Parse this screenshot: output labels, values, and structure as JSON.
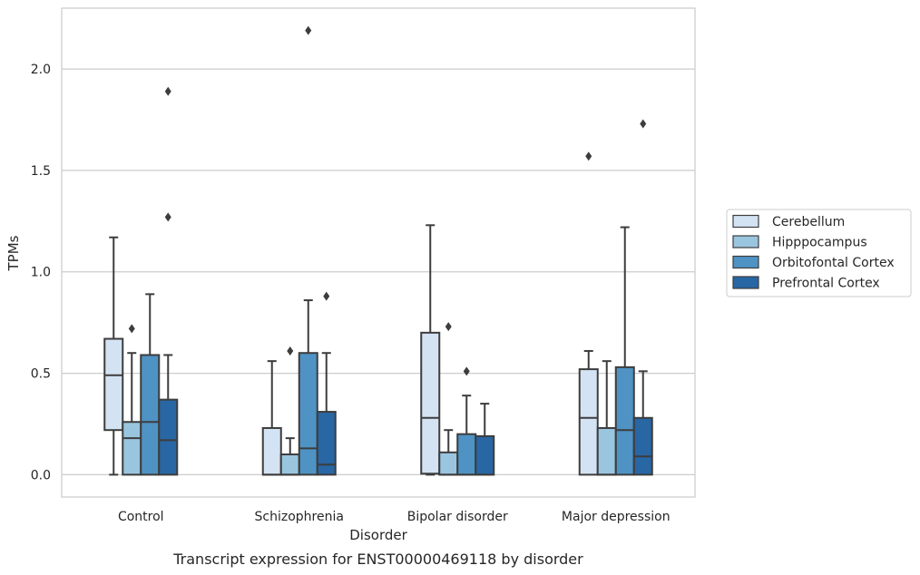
{
  "chart_data": {
    "type": "box",
    "title": "",
    "caption": "Transcript expression for ENST00000469118 by disorder",
    "xlabel": "Disorder",
    "ylabel": "TPMs",
    "ylim": [
      -0.11,
      2.3
    ],
    "yticks": [
      0.0,
      0.5,
      1.0,
      1.5,
      2.0
    ],
    "ytick_labels": [
      "0.0",
      "0.5",
      "1.0",
      "1.5",
      "2.0"
    ],
    "grid": true,
    "legend_position": "right",
    "categories": [
      "Control",
      "Schizophrenia",
      "Bipolar disorder",
      "Major depression"
    ],
    "series": [
      {
        "name": "Cerebellum",
        "color": "#d3e3f3",
        "boxes": [
          {
            "whislo": 0.0,
            "q1": 0.22,
            "med": 0.49,
            "q3": 0.67,
            "whishi": 1.17,
            "fliers": []
          },
          {
            "whislo": 0.0,
            "q1": 0.0,
            "med": 0.0,
            "q3": 0.23,
            "whishi": 0.56,
            "fliers": []
          },
          {
            "whislo": 0.0,
            "q1": 0.005,
            "med": 0.28,
            "q3": 0.7,
            "whishi": 1.23,
            "fliers": []
          },
          {
            "whislo": 0.0,
            "q1": 0.0,
            "med": 0.28,
            "q3": 0.52,
            "whishi": 0.61,
            "fliers": [
              1.57
            ]
          }
        ]
      },
      {
        "name": "Hipppocampus",
        "color": "#9ac5df",
        "boxes": [
          {
            "whislo": 0.0,
            "q1": 0.0,
            "med": 0.18,
            "q3": 0.26,
            "whishi": 0.6,
            "fliers": [
              0.72
            ]
          },
          {
            "whislo": 0.0,
            "q1": 0.0,
            "med": 0.0,
            "q3": 0.1,
            "whishi": 0.18,
            "fliers": [
              0.61
            ]
          },
          {
            "whislo": 0.0,
            "q1": 0.0,
            "med": 0.0,
            "q3": 0.11,
            "whishi": 0.22,
            "fliers": [
              0.73
            ]
          },
          {
            "whislo": 0.0,
            "q1": 0.0,
            "med": 0.0,
            "q3": 0.23,
            "whishi": 0.56,
            "fliers": []
          }
        ]
      },
      {
        "name": "Orbitofontal Cortex",
        "color": "#4f93c4",
        "boxes": [
          {
            "whislo": 0.0,
            "q1": 0.0,
            "med": 0.26,
            "q3": 0.59,
            "whishi": 0.89,
            "fliers": []
          },
          {
            "whislo": 0.0,
            "q1": 0.0,
            "med": 0.13,
            "q3": 0.6,
            "whishi": 0.86,
            "fliers": [
              2.19
            ]
          },
          {
            "whislo": 0.0,
            "q1": 0.0,
            "med": 0.0,
            "q3": 0.2,
            "whishi": 0.39,
            "fliers": [
              0.51
            ]
          },
          {
            "whislo": 0.0,
            "q1": 0.0,
            "med": 0.22,
            "q3": 0.53,
            "whishi": 1.22,
            "fliers": []
          }
        ]
      },
      {
        "name": "Prefrontal Cortex",
        "color": "#2866a4",
        "boxes": [
          {
            "whislo": 0.0,
            "q1": 0.0,
            "med": 0.17,
            "q3": 0.37,
            "whishi": 0.59,
            "fliers": [
              1.27,
              1.89
            ]
          },
          {
            "whislo": 0.0,
            "q1": 0.0,
            "med": 0.05,
            "q3": 0.31,
            "whishi": 0.6,
            "fliers": [
              0.88
            ]
          },
          {
            "whislo": 0.0,
            "q1": 0.0,
            "med": 0.0,
            "q3": 0.19,
            "whishi": 0.35,
            "fliers": []
          },
          {
            "whislo": 0.0,
            "q1": 0.0,
            "med": 0.09,
            "q3": 0.28,
            "whishi": 0.51,
            "fliers": [
              1.73
            ]
          }
        ]
      }
    ]
  }
}
